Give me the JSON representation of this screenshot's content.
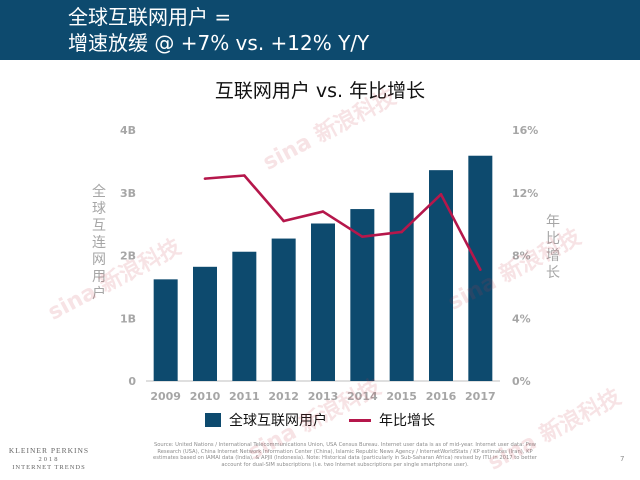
{
  "header": {
    "title_line1": "全球互联网用户 =",
    "title_line2": "增速放缓 @ +7% vs. +12% Y/Y"
  },
  "chart_data": {
    "type": "bar",
    "title": "互联网用户 vs. 年比增长",
    "categories": [
      "2009",
      "2010",
      "2011",
      "2012",
      "2013",
      "2014",
      "2015",
      "2016",
      "2017"
    ],
    "series": [
      {
        "name": "全球互联网用户",
        "type": "bar",
        "axis": "left",
        "color": "#0d4a6e",
        "values": [
          1.62,
          1.82,
          2.06,
          2.27,
          2.51,
          2.74,
          3.0,
          3.36,
          3.59
        ]
      },
      {
        "name": "年比增长",
        "type": "line",
        "axis": "right",
        "color": "#b5174b",
        "values_pct": [
          null,
          12.9,
          13.1,
          10.2,
          10.8,
          9.2,
          9.5,
          11.9,
          7.1
        ]
      }
    ],
    "y_left": {
      "label": "全球互连网用户",
      "min": 0,
      "max": 4,
      "ticks": [
        0,
        1,
        2,
        3,
        4
      ],
      "tick_labels": [
        "0",
        "1B",
        "2B",
        "3B",
        "4B"
      ]
    },
    "y_right": {
      "label": "年比增长",
      "min": 0,
      "max": 16,
      "ticks": [
        0,
        4,
        8,
        12,
        16
      ],
      "tick_labels": [
        "0%",
        "4%",
        "8%",
        "12%",
        "16%"
      ]
    },
    "grid": false,
    "legend_position": "bottom"
  },
  "source_note": "Source: United Nations / International Telecommunications Union, USA Census Bureau. Internet user data is as of mid-year. Internet user data: Pew Research (USA), China Internet Network Information Center (China), Islamic Republic News Agency / InternetWorldStats / KP estimates (Iran), KP estimates based on IAMAI data (India), & APJII (Indonesia). Note: Historical data (particularly in Sub-Saharan Africa) revised by ITU in 2017 to better account for dual-SIM subscriptions (i.e. two Internet subscriptions per single smartphone user).",
  "page_number": "7",
  "brand": {
    "line1": "KLEINER PERKINS",
    "line2": "2018",
    "line3": "INTERNET TRENDS"
  },
  "watermark_text": "sina 新浪科技"
}
